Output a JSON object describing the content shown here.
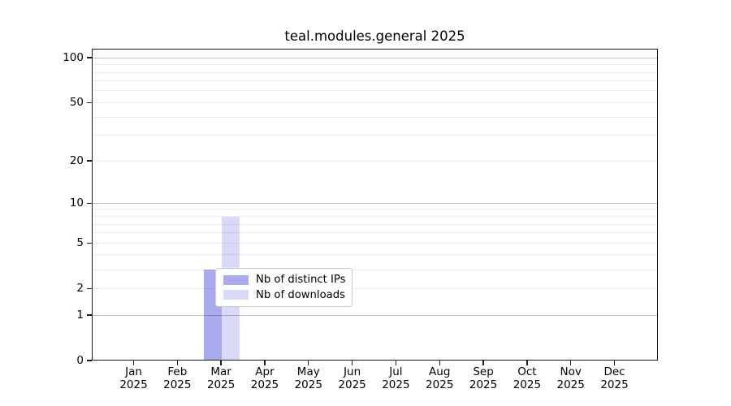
{
  "chart_data": {
    "type": "bar",
    "title": "teal.modules.general 2025",
    "categories": [
      "Jan",
      "Feb",
      "Mar",
      "Apr",
      "May",
      "Jun",
      "Jul",
      "Aug",
      "Sep",
      "Oct",
      "Nov",
      "Dec"
    ],
    "year_label": "2025",
    "series": [
      {
        "name": "Nb of distinct IPs",
        "color": "#aaaaee",
        "values": [
          0,
          0,
          3,
          0,
          0,
          0,
          0,
          0,
          0,
          0,
          0,
          0
        ]
      },
      {
        "name": "Nb of downloads",
        "color": "#d9d9f8",
        "values": [
          0,
          0,
          8,
          0,
          0,
          0,
          0,
          0,
          0,
          0,
          0,
          0
        ]
      }
    ],
    "y_axis": {
      "scale": "log10(1+x)",
      "ticks": [
        0,
        1,
        2,
        5,
        10,
        20,
        50,
        100
      ],
      "major_gridlines": [
        1,
        10,
        100
      ],
      "minor_gridlines": [
        2,
        3,
        4,
        5,
        6,
        7,
        8,
        9,
        20,
        30,
        40,
        50,
        60,
        70,
        80,
        90
      ],
      "top_value": 115
    },
    "x_axis": {
      "label_year_on_second_line": true
    },
    "legend": {
      "position": "bottom-center-inside"
    },
    "colors": {
      "axis": "#1a1a1a",
      "background": "#ffffff"
    },
    "grid": "on"
  }
}
